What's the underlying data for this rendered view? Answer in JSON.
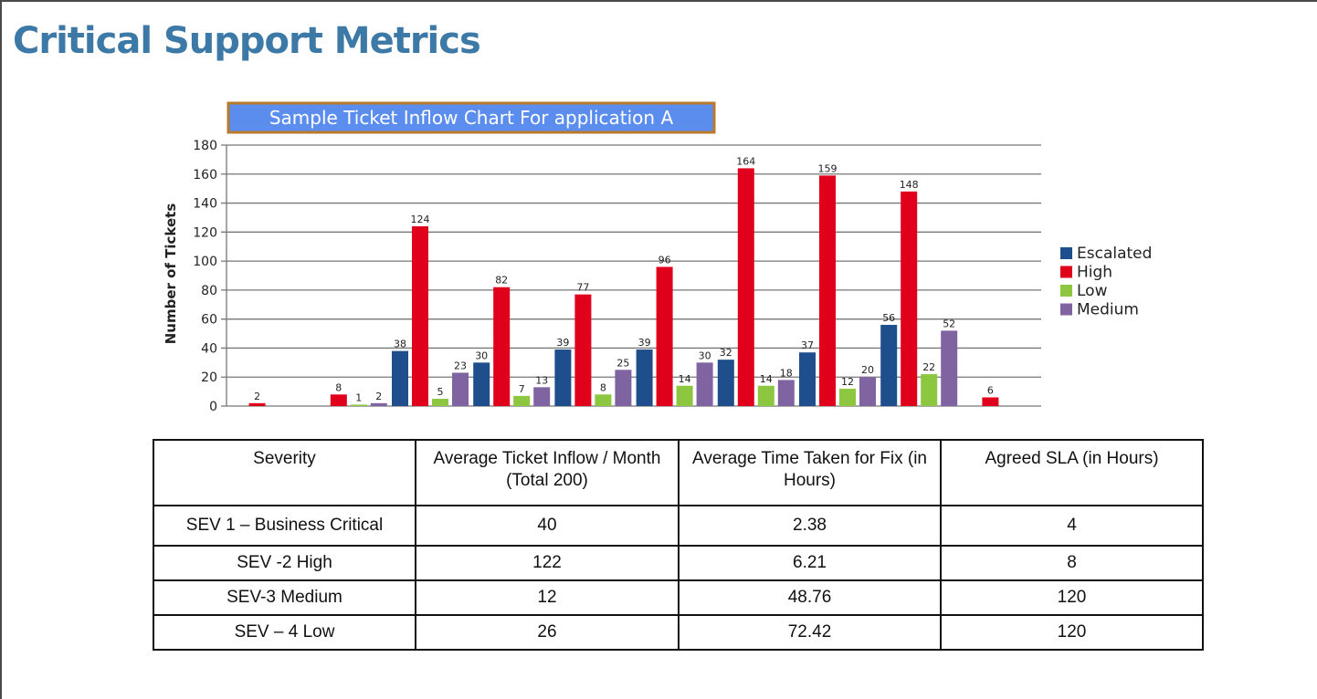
{
  "page": {
    "title": "Critical Support Metrics"
  },
  "chart_data": {
    "type": "bar",
    "title": "Sample Ticket Inflow Chart For application A",
    "ylabel": "Number of Tickets",
    "xlabel": "",
    "ylim": [
      0,
      180
    ],
    "yticks": [
      0,
      20,
      40,
      60,
      80,
      100,
      120,
      140,
      160,
      180
    ],
    "grid": true,
    "legend_position": "right",
    "categories": [
      "",
      "",
      "",
      "",
      "",
      "",
      "",
      "",
      "",
      ""
    ],
    "series": [
      {
        "name": "Escalated",
        "color": "#1f4e8c",
        "values": [
          null,
          null,
          38,
          30,
          39,
          39,
          32,
          37,
          56,
          null
        ]
      },
      {
        "name": "High",
        "color": "#e0001b",
        "values": [
          2,
          8,
          124,
          82,
          77,
          96,
          164,
          159,
          148,
          6
        ]
      },
      {
        "name": "Low",
        "color": "#8dc63f",
        "values": [
          null,
          1,
          5,
          7,
          8,
          14,
          14,
          12,
          22,
          null
        ]
      },
      {
        "name": "Medium",
        "color": "#8064a2",
        "values": [
          null,
          2,
          23,
          13,
          25,
          30,
          18,
          20,
          52,
          null
        ]
      }
    ]
  },
  "table": {
    "headers": [
      "Severity",
      "Average Ticket Inflow / Month (Total 200)",
      "Average Time Taken for  Fix (in Hours)",
      "Agreed SLA (in Hours)"
    ],
    "rows": [
      [
        "SEV 1 – Business Critical",
        "40",
        "2.38",
        "4"
      ],
      [
        "SEV -2 High",
        "122",
        "6.21",
        "8"
      ],
      [
        "SEV-3 Medium",
        "12",
        "48.76",
        "120"
      ],
      [
        "SEV – 4 Low",
        "26",
        "72.42",
        "120"
      ]
    ]
  }
}
